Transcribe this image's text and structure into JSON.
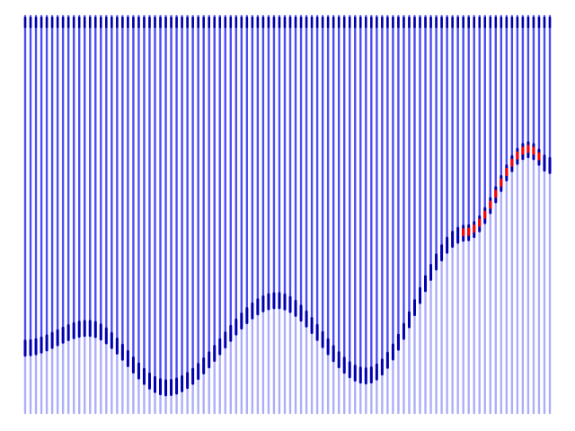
{
  "wiggle_plot": {
    "trace_count": 98,
    "trace_color": "#0000ee",
    "background": "#ffffff",
    "highlight_color": "#ff0000",
    "highlight_range": [
      0.83,
      0.98
    ],
    "interface_control_points": [
      [
        0.0,
        0.85
      ],
      [
        0.12,
        0.8
      ],
      [
        0.27,
        0.95
      ],
      [
        0.48,
        0.73
      ],
      [
        0.65,
        0.92
      ],
      [
        0.84,
        0.56
      ],
      [
        0.96,
        0.35
      ],
      [
        1.0,
        0.39
      ]
    ],
    "upper_level": 0.7,
    "lower_level": 0.32
  }
}
